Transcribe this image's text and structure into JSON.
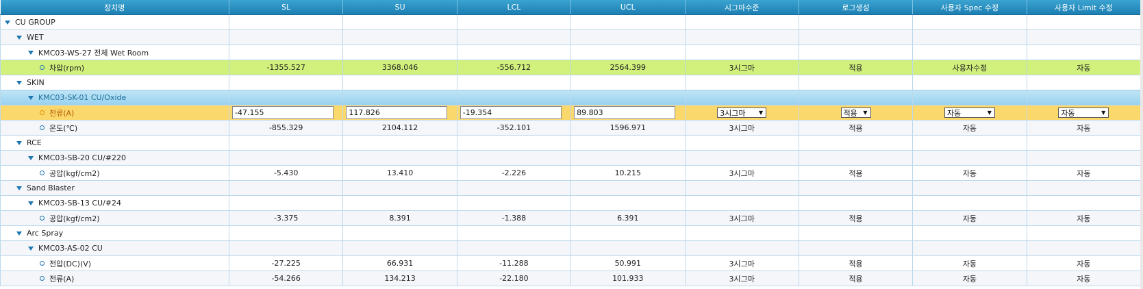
{
  "columns": [
    "장치명",
    "SL",
    "SU",
    "LCL",
    "UCL",
    "시그마수준",
    "로그생성",
    "사용자 Spec 수정",
    "사용자 Limit 수정"
  ],
  "rows": [
    {
      "type": "group",
      "level": 0,
      "name": "CU GROUP"
    },
    {
      "type": "group",
      "level": 1,
      "name": "WET"
    },
    {
      "type": "group",
      "level": 2,
      "name": "KMC03-WS-27 전체 Wet Room"
    },
    {
      "type": "leaf",
      "level": 3,
      "name": "차압(rpm)",
      "sl": "-1355.527",
      "su": "3368.046",
      "lcl": "-556.712",
      "ucl": "2564.399",
      "sigma": "3시그마",
      "log": "적용",
      "spec": "사용자수정",
      "limit": "자동",
      "state": "green"
    },
    {
      "type": "group",
      "level": 1,
      "name": "SKIN"
    },
    {
      "type": "group",
      "level": 2,
      "name": "KMC03-SK-01 CU/Oxide",
      "state": "blue"
    },
    {
      "type": "leaf",
      "level": 3,
      "name": "전류(A)",
      "sl": "-47.155",
      "su": "117.826",
      "lcl": "-19.354",
      "ucl": "89.803",
      "sigma": "3시그마",
      "log": "적용",
      "spec": "자동",
      "limit": "자동",
      "state": "edit"
    },
    {
      "type": "leaf",
      "level": 3,
      "name": "온도(℃)",
      "sl": "-855.329",
      "su": "2104.112",
      "lcl": "-352.101",
      "ucl": "1596.971",
      "sigma": "3시그마",
      "log": "적용",
      "spec": "자동",
      "limit": "자동"
    },
    {
      "type": "group",
      "level": 1,
      "name": "RCE"
    },
    {
      "type": "group",
      "level": 2,
      "name": "KMC03-SB-20 CU/#220"
    },
    {
      "type": "leaf",
      "level": 3,
      "name": "공압(kgf/cm2)",
      "sl": "-5.430",
      "su": "13.410",
      "lcl": "-2.226",
      "ucl": "10.215",
      "sigma": "3시그마",
      "log": "적용",
      "spec": "자동",
      "limit": "자동"
    },
    {
      "type": "group",
      "level": 1,
      "name": "Sand Blaster"
    },
    {
      "type": "group",
      "level": 2,
      "name": "KMC03-SB-13 CU/#24"
    },
    {
      "type": "leaf",
      "level": 3,
      "name": "공압(kgf/cm2)",
      "sl": "-3.375",
      "su": "8.391",
      "lcl": "-1.388",
      "ucl": "6.391",
      "sigma": "3시그마",
      "log": "적용",
      "spec": "자동",
      "limit": "자동"
    },
    {
      "type": "group",
      "level": 1,
      "name": "Arc Spray"
    },
    {
      "type": "group",
      "level": 2,
      "name": "KMC03-AS-02 CU"
    },
    {
      "type": "leaf",
      "level": 3,
      "name": "전압(DC)(V)",
      "sl": "-27.225",
      "su": "66.931",
      "lcl": "-11.288",
      "ucl": "50.991",
      "sigma": "3시그마",
      "log": "적용",
      "spec": "자동",
      "limit": "자동"
    },
    {
      "type": "leaf",
      "level": 3,
      "name": "전류(A)",
      "sl": "-54.266",
      "su": "134.213",
      "lcl": "-22.180",
      "ucl": "101.933",
      "sigma": "3시그마",
      "log": "적용",
      "spec": "자동",
      "limit": "자동"
    }
  ]
}
